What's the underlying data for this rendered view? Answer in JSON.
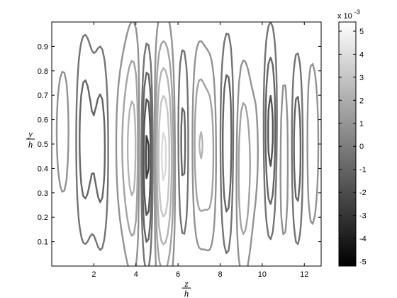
{
  "chart_data": {
    "type": "contour",
    "title": "",
    "xlabel": {
      "numerator": "z",
      "denominator": "h"
    },
    "ylabel": {
      "numerator": "y",
      "denominator": "h"
    },
    "xlim": [
      0,
      12.8
    ],
    "ylim": [
      0,
      1.0
    ],
    "x_ticks": [
      "2",
      "4",
      "6",
      "8",
      "10",
      "12"
    ],
    "y_ticks": [
      "0.1",
      "0.2",
      "0.3",
      "0.4",
      "0.5",
      "0.6",
      "0.7",
      "0.8",
      "0.9"
    ],
    "colorbar": {
      "range": [
        -5.2,
        5.4
      ],
      "ticks": [
        "-5",
        "-4",
        "-3",
        "-2",
        "-1",
        "0",
        "1",
        "2",
        "3",
        "4",
        "5"
      ],
      "multiplier_base": "x 10",
      "multiplier_exponent": "-3",
      "colormap": "gray"
    },
    "structures": [
      {
        "z": 0.55,
        "y": 0.55,
        "amp": 1.2,
        "wz": 0.35,
        "wy": 0.28
      },
      {
        "z": 1.55,
        "y": 0.52,
        "amp": -2.2,
        "wz": 0.32,
        "wy": 0.3
      },
      {
        "z": 2.35,
        "y": 0.48,
        "amp": -2.0,
        "wz": 0.28,
        "wy": 0.3
      },
      {
        "z": 3.25,
        "y": 0.5,
        "amp": 0.9,
        "wz": 0.32,
        "wy": 0.3
      },
      {
        "z": 3.9,
        "y": 0.48,
        "amp": 3.0,
        "wz": 0.33,
        "wy": 0.32
      },
      {
        "z": 4.55,
        "y": 0.45,
        "amp": -5.0,
        "wz": 0.26,
        "wy": 0.28
      },
      {
        "z": 5.3,
        "y": 0.45,
        "amp": 4.8,
        "wz": 0.4,
        "wy": 0.32
      },
      {
        "z": 6.2,
        "y": 0.5,
        "amp": -2.2,
        "wz": 0.28,
        "wy": 0.3
      },
      {
        "z": 7.0,
        "y": 0.5,
        "amp": 2.4,
        "wz": 0.28,
        "wy": 0.28
      },
      {
        "z": 7.55,
        "y": 0.46,
        "amp": 1.8,
        "wz": 0.24,
        "wy": 0.28
      },
      {
        "z": 8.35,
        "y": 0.5,
        "amp": -2.6,
        "wz": 0.25,
        "wy": 0.3
      },
      {
        "z": 9.1,
        "y": 0.4,
        "amp": 2.4,
        "wz": 0.3,
        "wy": 0.3
      },
      {
        "z": 9.8,
        "y": 0.5,
        "amp": 0.8,
        "wz": 0.25,
        "wy": 0.28
      },
      {
        "z": 10.4,
        "y": 0.55,
        "amp": -3.0,
        "wz": 0.25,
        "wy": 0.28
      },
      {
        "z": 11.05,
        "y": 0.45,
        "amp": 1.6,
        "wz": 0.28,
        "wy": 0.3
      },
      {
        "z": 11.65,
        "y": 0.48,
        "amp": -2.4,
        "wz": 0.25,
        "wy": 0.28
      },
      {
        "z": 12.35,
        "y": 0.5,
        "amp": 1.5,
        "wz": 0.28,
        "wy": 0.3
      }
    ]
  }
}
